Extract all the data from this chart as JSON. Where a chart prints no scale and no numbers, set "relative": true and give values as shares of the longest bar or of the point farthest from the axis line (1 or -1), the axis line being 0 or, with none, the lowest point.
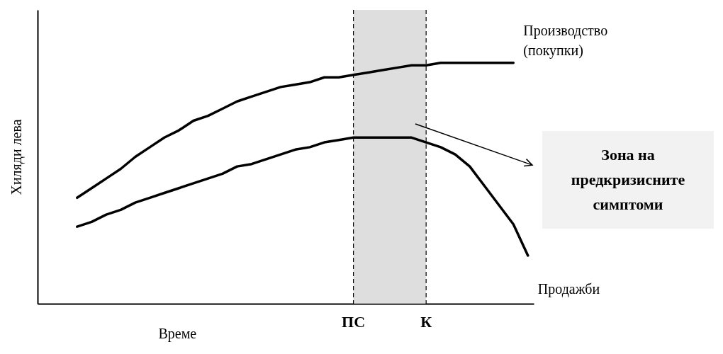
{
  "chart_data": {
    "type": "line",
    "relative": true,
    "xlabel": "Време",
    "ylabel": "Хиляди лева",
    "categories": [
      null,
      null,
      null,
      null,
      null,
      null,
      null,
      null,
      null,
      null,
      null,
      null,
      null,
      null,
      null,
      null,
      null,
      null,
      null,
      "ПС",
      null,
      null,
      null,
      null,
      "К",
      null,
      null,
      null,
      null,
      null,
      null,
      null
    ],
    "tick_labels": "x",
    "grid": false,
    "legend": false,
    "marker": "none",
    "line_style": "solid",
    "series": [
      {
        "name": "Производство (покупки)",
        "color": "#000000",
        "values": [
          0.44,
          0.48,
          0.52,
          0.56,
          0.61,
          0.65,
          0.69,
          0.72,
          0.76,
          0.78,
          0.81,
          0.84,
          0.86,
          0.88,
          0.9,
          0.91,
          0.92,
          0.94,
          0.94,
          0.95,
          0.96,
          0.97,
          0.98,
          0.99,
          0.99,
          1,
          1,
          1,
          1,
          1,
          1,
          null
        ]
      },
      {
        "name": "Продажби",
        "color": "#000000",
        "values": [
          0.32,
          0.34,
          0.37,
          0.39,
          0.42,
          0.44,
          0.46,
          0.48,
          0.5,
          0.52,
          0.54,
          0.57,
          0.58,
          0.6,
          0.62,
          0.64,
          0.65,
          0.67,
          0.68,
          0.69,
          0.69,
          0.69,
          0.69,
          0.69,
          0.67,
          0.65,
          0.62,
          0.57,
          0.49,
          0.41,
          0.33,
          0.2
        ]
      }
    ],
    "ref_lines": [
      {
        "axis": "x",
        "value": "ПС",
        "line_style": "dashed",
        "color": "#000000"
      },
      {
        "axis": "x",
        "value": "К",
        "line_style": "dashed",
        "color": "#000000"
      }
    ],
    "bands": [
      {
        "axis": "x",
        "from": "ПС",
        "to": "К",
        "color": "#d0d0d0"
      }
    ],
    "annotations": [
      "Зона на предкризисните симптоми"
    ]
  }
}
